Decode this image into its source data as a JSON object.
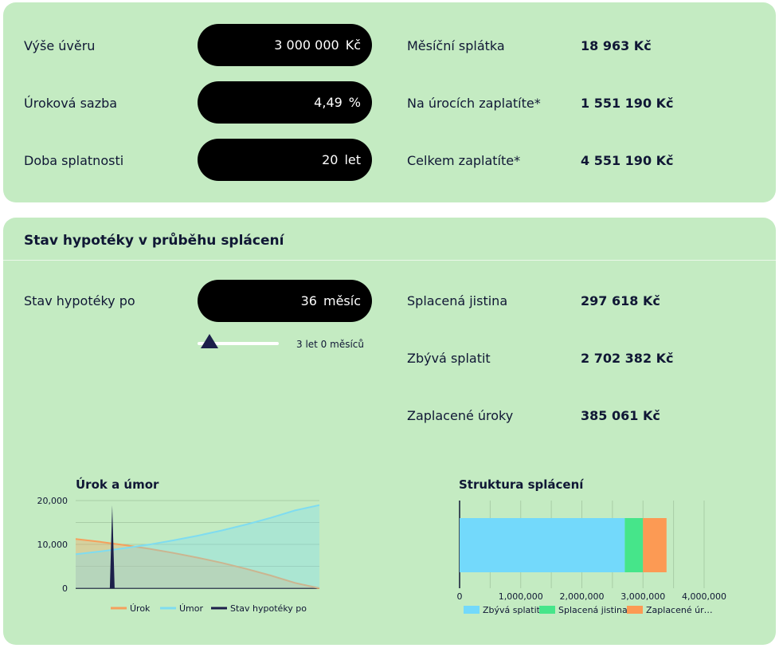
{
  "calculator": {
    "loan_label": "Výše úvěru",
    "loan_value": "3 000 000",
    "loan_unit": "Kč",
    "rate_label": "Úroková sazba",
    "rate_value": "4,49",
    "rate_unit": "%",
    "term_label": "Doba splatnosti",
    "term_value": "20",
    "term_unit": "let"
  },
  "results": {
    "monthly_label": "Měsíční splátka",
    "monthly_value": "18 963 Kč",
    "interest_label": "Na úrocích zaplatíte*",
    "interest_value": "1 551 190 Kč",
    "total_label": "Celkem zaplatíte*",
    "total_value": "4 551 190 Kč"
  },
  "status": {
    "title": "Stav hypotéky v průběhu splácení",
    "after_label": "Stav hypotéky po",
    "after_value": "36",
    "after_unit": "měsíc",
    "slider_text": "3 let 0 měsíců",
    "slider_fraction": 0.15,
    "principal_paid_label": "Splacená jistina",
    "principal_paid_value": "297 618 Kč",
    "remaining_label": "Zbývá splatit",
    "remaining_value": "2 702 382 Kč",
    "interest_paid_label": "Zaplacené úroky",
    "interest_paid_value": "385 061 Kč"
  },
  "chart_data": [
    {
      "type": "area",
      "title": "Úrok a úmor",
      "x_months": [
        0,
        24,
        48,
        72,
        96,
        120,
        144,
        168,
        192,
        216,
        240
      ],
      "ylim": [
        0,
        20000
      ],
      "yticks": [
        "20,000",
        "10,000",
        "0"
      ],
      "marker_month": 36,
      "marker_value": 18963,
      "series": [
        {
          "name": "Úrok",
          "color": "#f5a05c",
          "values": [
            11225,
            10580,
            9840,
            9010,
            8060,
            6990,
            5780,
            4420,
            2900,
            1220,
            0
          ]
        },
        {
          "name": "Úmor",
          "color": "#7fdcf0",
          "values": [
            7738,
            8383,
            9123,
            9953,
            10903,
            11973,
            13183,
            14543,
            16063,
            17743,
            18963
          ]
        },
        {
          "name": "Stav hypotéky po",
          "color": "#1c1f4a"
        }
      ]
    },
    {
      "type": "bar",
      "title": "Struktura splácení",
      "orientation": "horizontal-stacked",
      "xlim": [
        0,
        4000000
      ],
      "xticks": [
        "0",
        "1,000,000",
        "2,000,000",
        "3,000,000",
        "4,000,000"
      ],
      "series": [
        {
          "name": "Zbývá splatit",
          "color": "#73d9fb",
          "value": 2702382
        },
        {
          "name": "Splacená jistina",
          "color": "#46e58a",
          "value": 297618
        },
        {
          "name": "Zaplacené úr…",
          "color": "#fc9a54",
          "value": 385061
        }
      ]
    }
  ]
}
